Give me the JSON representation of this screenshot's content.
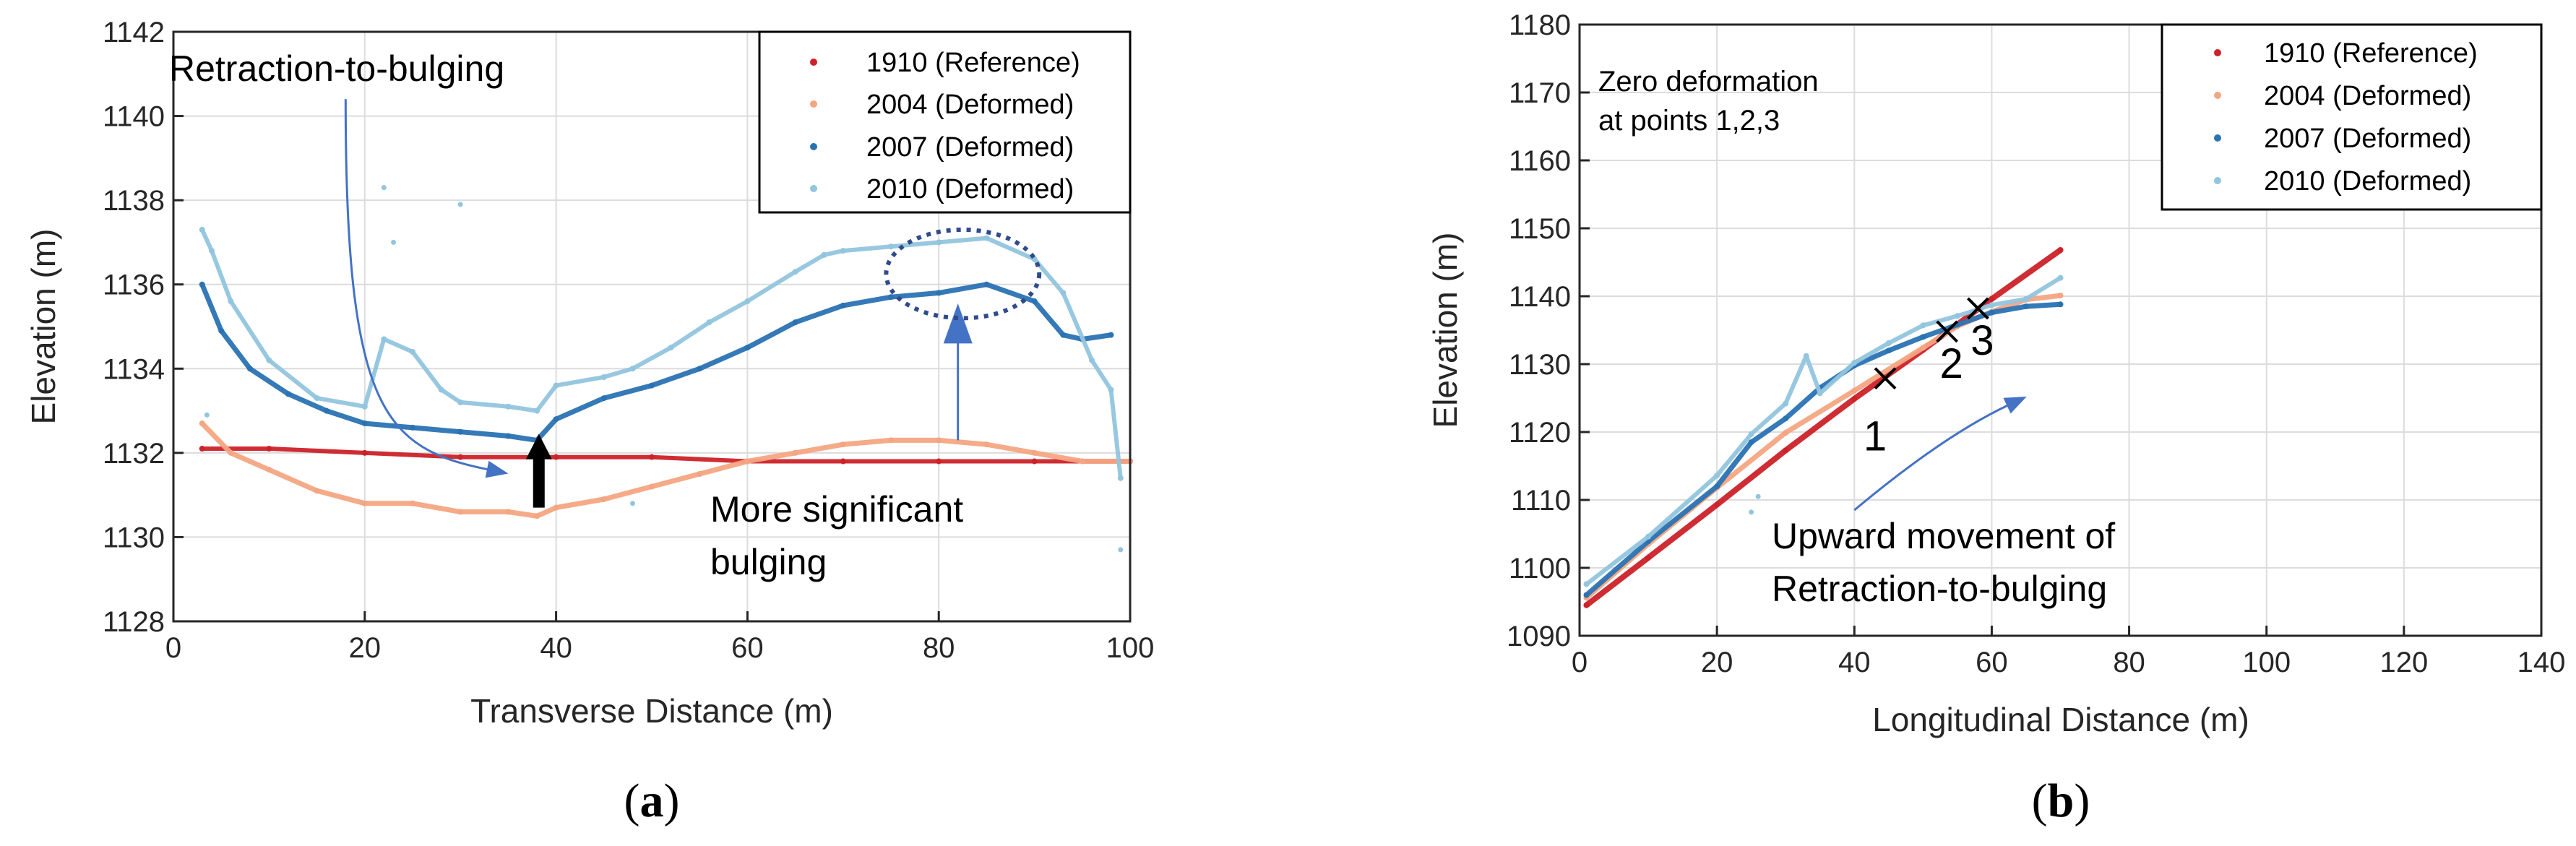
{
  "colors": {
    "s1910": "#cc2229",
    "s2004": "#f4a582",
    "s2007": "#2a73b3",
    "s2010": "#92c5de",
    "arrow": "#4472c4",
    "ellipse": "#2f4b8c",
    "grid": "#dcdcdc",
    "axis": "#262626"
  },
  "chart_data": [
    {
      "panel": "a",
      "caption": {
        "open": "(",
        "letter": "a",
        "close": ")"
      },
      "type": "scatter",
      "xlabel": "Transverse Distance (m)",
      "ylabel": "Elevation (m)",
      "xlim": [
        0,
        100
      ],
      "ylim": [
        1128,
        1142
      ],
      "xticks": [
        0,
        20,
        40,
        60,
        80,
        100
      ],
      "yticks": [
        1128,
        1130,
        1132,
        1134,
        1136,
        1138,
        1140,
        1142
      ],
      "grid": true,
      "legend_position": "top-right",
      "series": [
        {
          "name": "1910 (Reference)",
          "color_key": "s1910",
          "x": [
            3,
            10,
            20,
            30,
            40,
            50,
            60,
            70,
            80,
            90,
            100
          ],
          "y": [
            1132.1,
            1132.1,
            1132.0,
            1131.9,
            1131.9,
            1131.9,
            1131.8,
            1131.8,
            1131.8,
            1131.8,
            1131.8
          ]
        },
        {
          "name": "2004 (Deformed)",
          "color_key": "s2004",
          "x": [
            3,
            6,
            10,
            15,
            20,
            25,
            30,
            35,
            38,
            40,
            45,
            50,
            55,
            60,
            65,
            70,
            75,
            80,
            85,
            90,
            95,
            100
          ],
          "y": [
            1132.7,
            1132.0,
            1131.6,
            1131.1,
            1130.8,
            1130.8,
            1130.6,
            1130.6,
            1130.5,
            1130.7,
            1130.9,
            1131.2,
            1131.5,
            1131.8,
            1132.0,
            1132.2,
            1132.3,
            1132.3,
            1132.2,
            1132.0,
            1131.8,
            1131.8
          ]
        },
        {
          "name": "2007 (Deformed)",
          "color_key": "s2007",
          "x": [
            3,
            5,
            8,
            12,
            16,
            20,
            25,
            30,
            35,
            38,
            40,
            45,
            50,
            55,
            60,
            65,
            70,
            75,
            80,
            85,
            90,
            93,
            95,
            98
          ],
          "y": [
            1136.0,
            1134.9,
            1134.0,
            1133.4,
            1133.0,
            1132.7,
            1132.6,
            1132.5,
            1132.4,
            1132.3,
            1132.8,
            1133.3,
            1133.6,
            1134.0,
            1134.5,
            1135.1,
            1135.5,
            1135.7,
            1135.8,
            1136.0,
            1135.6,
            1134.8,
            1134.7,
            1134.8
          ]
        },
        {
          "name": "2010 (Deformed)",
          "color_key": "s2010",
          "x": [
            3,
            4,
            6,
            10,
            15,
            20,
            22,
            25,
            28,
            30,
            35,
            38,
            40,
            45,
            48,
            52,
            56,
            60,
            65,
            68,
            70,
            75,
            80,
            85,
            90,
            93,
            96,
            98,
            99
          ],
          "y": [
            1137.3,
            1136.8,
            1135.6,
            1134.2,
            1133.3,
            1133.1,
            1134.7,
            1134.4,
            1133.5,
            1133.2,
            1133.1,
            1133.0,
            1133.6,
            1133.8,
            1134.0,
            1134.5,
            1135.1,
            1135.6,
            1136.3,
            1136.7,
            1136.8,
            1136.9,
            1137.0,
            1137.1,
            1136.6,
            1135.8,
            1134.2,
            1133.5,
            1131.4
          ]
        }
      ],
      "outlier_points": {
        "x": [
          3.5,
          22,
          23,
          30,
          48,
          99
        ],
        "y": [
          1132.9,
          1138.3,
          1137.0,
          1137.9,
          1130.8,
          1129.7
        ]
      },
      "annotations": {
        "retraction_label": "Retraction-to-bulging",
        "bulging_label_line1": "More significant",
        "bulging_label_line2": "bulging"
      }
    },
    {
      "panel": "b",
      "caption": {
        "open": "(",
        "letter": "b",
        "close": ")"
      },
      "type": "scatter",
      "xlabel": "Longitudinal Distance (m)",
      "ylabel": "Elevation (m)",
      "xlim": [
        0,
        140
      ],
      "ylim": [
        1090,
        1180
      ],
      "xticks": [
        0,
        20,
        40,
        60,
        80,
        100,
        120,
        140
      ],
      "yticks": [
        1090,
        1100,
        1110,
        1120,
        1130,
        1140,
        1150,
        1160,
        1170,
        1180
      ],
      "grid": true,
      "legend_position": "top-right",
      "series": [
        {
          "name": "1910 (Reference)",
          "color_key": "s1910",
          "x": [
            1,
            10,
            20,
            30,
            40,
            50,
            60,
            70
          ],
          "y": [
            1094.5,
            1101.5,
            1109.3,
            1117.3,
            1124.9,
            1132.1,
            1139.6,
            1146.8
          ]
        },
        {
          "name": "2004 (Deformed)",
          "color_key": "s2004",
          "x": [
            1,
            10,
            20,
            30,
            40,
            50,
            55,
            60,
            65,
            70
          ],
          "y": [
            1095.6,
            1103.5,
            1111.8,
            1119.9,
            1126.1,
            1132.4,
            1135.6,
            1137.7,
            1139.5,
            1140.1
          ]
        },
        {
          "name": "2007 (Deformed)",
          "color_key": "s2007",
          "x": [
            1,
            10,
            20,
            25,
            30,
            35,
            40,
            45,
            50,
            55,
            60,
            65,
            70
          ],
          "y": [
            1096.0,
            1103.9,
            1112.0,
            1118.5,
            1122.0,
            1126.5,
            1129.8,
            1132.0,
            1134.0,
            1135.8,
            1137.6,
            1138.5,
            1138.8
          ]
        },
        {
          "name": "2010 (Deformed)",
          "color_key": "s2010",
          "x": [
            1,
            10,
            20,
            25,
            30,
            33,
            35,
            40,
            45,
            50,
            55,
            60,
            65,
            70
          ],
          "y": [
            1097.6,
            1104.6,
            1113.6,
            1119.7,
            1124.2,
            1131.2,
            1125.7,
            1130.2,
            1133.1,
            1135.7,
            1137.1,
            1138.7,
            1139.6,
            1142.7
          ]
        }
      ],
      "outlier_points": {
        "x": [
          25,
          26
        ],
        "y": [
          1108.2,
          1110.5
        ]
      },
      "markers": [
        {
          "label": "1",
          "x": 44.5,
          "y": 1127.9
        },
        {
          "label": "2",
          "x": 53.5,
          "y": 1134.8
        },
        {
          "label": "3",
          "x": 58.0,
          "y": 1138.2
        }
      ],
      "annotations": {
        "zero_line1": "Zero deformation",
        "zero_line2": "at points 1,2,3",
        "upward_line1": "Upward movement of",
        "upward_line2": "Retraction-to-bulging"
      }
    }
  ]
}
